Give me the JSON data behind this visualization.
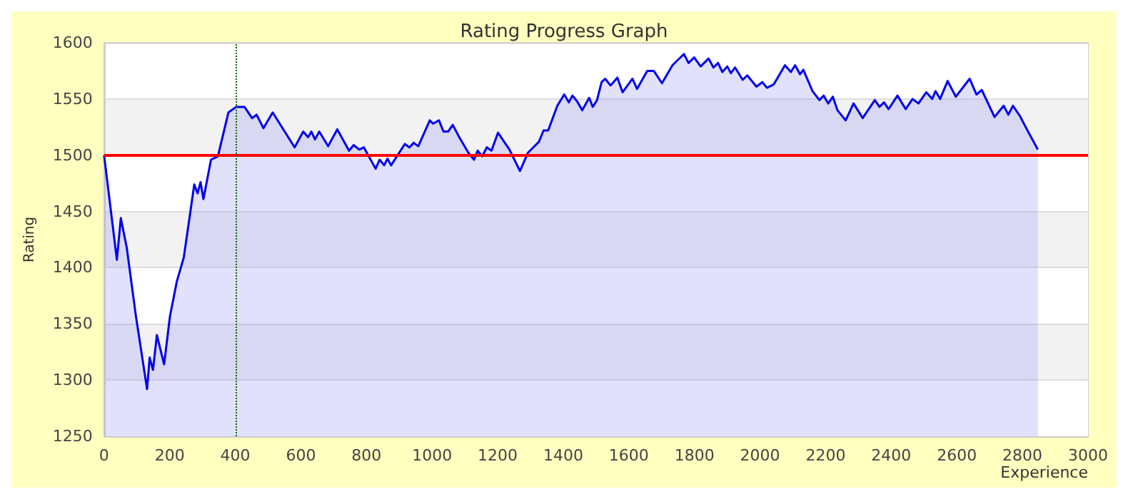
{
  "chart_data": {
    "type": "area",
    "title": "Rating Progress Graph",
    "xlabel": "Experience",
    "ylabel": "Rating",
    "x": [
      0,
      39,
      51,
      69,
      97,
      131,
      139,
      149,
      161,
      183,
      201,
      222,
      243,
      275,
      285,
      294,
      303,
      326,
      347,
      379,
      403,
      428,
      451,
      465,
      486,
      514,
      581,
      607,
      622,
      632,
      643,
      656,
      683,
      711,
      747,
      761,
      778,
      792,
      828,
      840,
      854,
      864,
      875,
      917,
      931,
      944,
      958,
      993,
      1003,
      1021,
      1035,
      1049,
      1063,
      1081,
      1111,
      1128,
      1139,
      1153,
      1167,
      1181,
      1201,
      1236,
      1268,
      1292,
      1326,
      1340,
      1354,
      1382,
      1403,
      1417,
      1428,
      1442,
      1458,
      1479,
      1490,
      1503,
      1517,
      1528,
      1544,
      1565,
      1581,
      1611,
      1625,
      1656,
      1676,
      1701,
      1733,
      1768,
      1782,
      1799,
      1819,
      1843,
      1858,
      1872,
      1885,
      1900,
      1911,
      1924,
      1947,
      1961,
      1989,
      2007,
      2021,
      2042,
      2076,
      2094,
      2107,
      2122,
      2132,
      2160,
      2181,
      2194,
      2208,
      2222,
      2236,
      2261,
      2285,
      2313,
      2350,
      2364,
      2378,
      2392,
      2419,
      2444,
      2465,
      2483,
      2507,
      2525,
      2535,
      2549,
      2572,
      2597,
      2639,
      2660,
      2676,
      2715,
      2743,
      2757,
      2771,
      2792,
      2819,
      2847
    ],
    "series": [
      {
        "color": "#0000ee",
        "values": [
          1500,
          1407,
          1444,
          1418,
          1357,
          1292,
          1320,
          1309,
          1340,
          1314,
          1357,
          1388,
          1409,
          1474,
          1466,
          1476,
          1461,
          1496,
          1499,
          1538,
          1543,
          1543,
          1533,
          1536,
          1524,
          1538,
          1507,
          1521,
          1516,
          1521,
          1514,
          1521,
          1508,
          1523,
          1504,
          1509,
          1505,
          1507,
          1488,
          1496,
          1491,
          1497,
          1491,
          1510,
          1507,
          1511,
          1508,
          1531,
          1528,
          1531,
          1521,
          1521,
          1527,
          1517,
          1502,
          1496,
          1504,
          1499,
          1507,
          1504,
          1520,
          1505,
          1486,
          1502,
          1512,
          1522,
          1522,
          1544,
          1554,
          1547,
          1553,
          1548,
          1540,
          1551,
          1543,
          1549,
          1565,
          1568,
          1562,
          1569,
          1556,
          1568,
          1559,
          1575,
          1575,
          1564,
          1580,
          1590,
          1582,
          1587,
          1579,
          1586,
          1578,
          1582,
          1574,
          1579,
          1573,
          1578,
          1567,
          1571,
          1561,
          1565,
          1560,
          1563,
          1580,
          1574,
          1580,
          1572,
          1576,
          1557,
          1549,
          1553,
          1546,
          1552,
          1540,
          1531,
          1546,
          1533,
          1549,
          1543,
          1547,
          1541,
          1553,
          1541,
          1550,
          1546,
          1556,
          1550,
          1557,
          1550,
          1566,
          1552,
          1568,
          1554,
          1558,
          1534,
          1544,
          1536,
          1544,
          1535,
          1520,
          1505
        ]
      }
    ],
    "xlim": [
      0,
      3000
    ],
    "xticks": [
      0,
      200,
      400,
      600,
      800,
      1000,
      1200,
      1400,
      1600,
      1800,
      2000,
      2200,
      2400,
      2600,
      2800,
      3000
    ],
    "ylim": [
      1250,
      1600
    ],
    "yticks": [
      1250,
      1300,
      1350,
      1400,
      1450,
      1500,
      1550,
      1600
    ],
    "ref_lines": [
      {
        "axis": "y",
        "value": 1500,
        "color": "#ff0000",
        "line_style": "solid"
      },
      {
        "axis": "x",
        "value": 400,
        "color": "#006600",
        "line_style": "dotted"
      }
    ],
    "grid": "y",
    "marker": "none",
    "line_style": "solid"
  }
}
